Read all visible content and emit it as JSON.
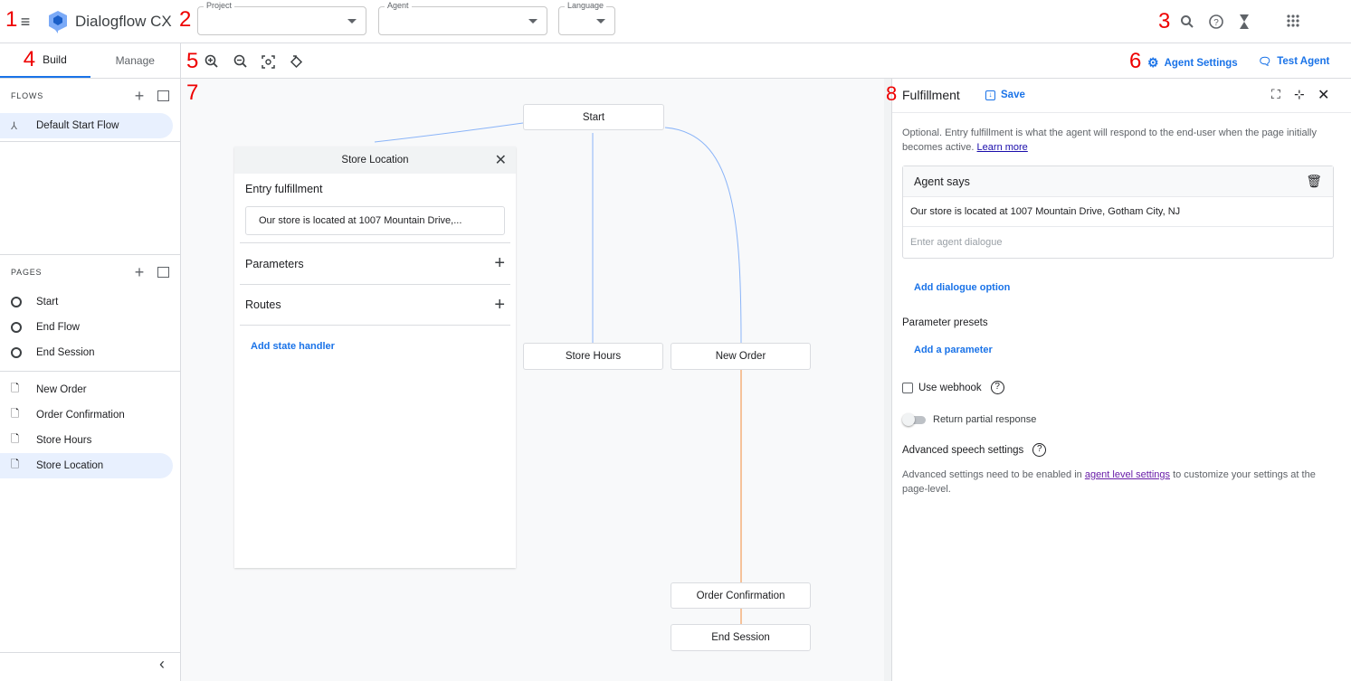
{
  "annotations": [
    "1",
    "2",
    "3",
    "4",
    "5",
    "6",
    "7",
    "8"
  ],
  "header": {
    "app_title": "Dialogflow CX",
    "project_label": "Project",
    "agent_label": "Agent",
    "language_label": "Language"
  },
  "sidebar": {
    "tabs": [
      {
        "label": "Build"
      },
      {
        "label": "Manage"
      }
    ],
    "flows_heading": "FLOWS",
    "flows": [
      {
        "label": "Default Start Flow"
      }
    ],
    "pages_heading": "PAGES",
    "special_pages": [
      {
        "label": "Start"
      },
      {
        "label": "End Flow"
      },
      {
        "label": "End Session"
      }
    ],
    "pages": [
      {
        "label": "New Order"
      },
      {
        "label": "Order Confirmation"
      },
      {
        "label": "Store Hours"
      },
      {
        "label": "Store Location"
      }
    ]
  },
  "toolbar": {
    "agent_settings": "Agent Settings",
    "test_agent": "Test Agent"
  },
  "canvas": {
    "nodes": {
      "start": "Start",
      "store_hours": "Store Hours",
      "new_order": "New Order",
      "order_confirmation": "Order Confirmation",
      "end_session": "End Session"
    },
    "store_location_panel": {
      "title": "Store Location",
      "entry_fulfillment": "Entry fulfillment",
      "entry_text": "Our store is located at 1007 Mountain Drive,...",
      "parameters": "Parameters",
      "routes": "Routes",
      "add_state_handler": "Add state handler"
    }
  },
  "fulfillment": {
    "title": "Fulfillment",
    "save": "Save",
    "description": "Optional. Entry fulfillment is what the agent will respond to the end-user when the page initially becomes active.",
    "learn_more": "Learn more",
    "agent_says": "Agent says",
    "message": "Our store is located at 1007 Mountain Drive, Gotham City, NJ",
    "dialogue_placeholder": "Enter agent dialogue",
    "add_dialogue_option": "Add dialogue option",
    "parameter_presets": "Parameter presets",
    "add_parameter": "Add a parameter",
    "use_webhook": "Use webhook",
    "use_webhook_checked": false,
    "return_partial": "Return partial response",
    "return_partial_on": false,
    "advanced_speech": "Advanced speech settings",
    "advanced_text_1": "Advanced settings need to be enabled in",
    "advanced_link": "agent level settings",
    "advanced_text_2": "to customize your settings at the page-level."
  },
  "colors": {
    "accent": "#1a73e8",
    "edge_blue": "#8ab4f8",
    "edge_orange": "#f28b3a",
    "selected_bg": "#e8f0fe"
  }
}
